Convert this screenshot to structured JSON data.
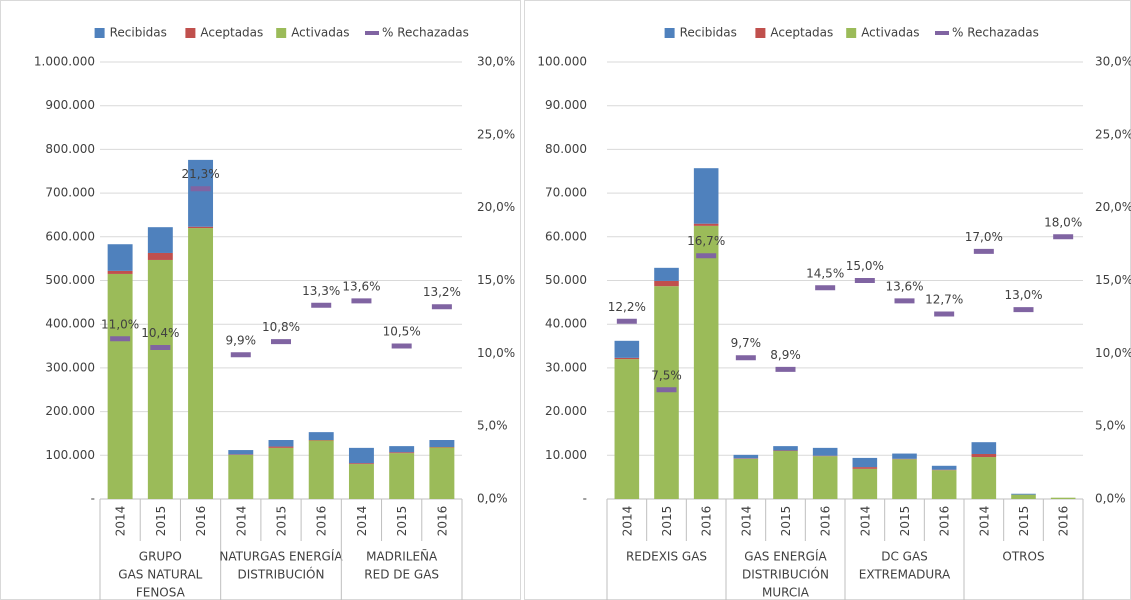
{
  "chart_data": [
    {
      "type": "bar",
      "stacked": true,
      "grid": true,
      "legend": "top",
      "ylim": [
        0,
        1000000
      ],
      "yticks": [
        {
          "value": 0,
          "label": "-"
        },
        {
          "value": 100000,
          "label": "100.000"
        },
        {
          "value": 200000,
          "label": "200.000"
        },
        {
          "value": 300000,
          "label": "300.000"
        },
        {
          "value": 400000,
          "label": "400.000"
        },
        {
          "value": 500000,
          "label": "500.000"
        },
        {
          "value": 600000,
          "label": "600.000"
        },
        {
          "value": 700000,
          "label": "700.000"
        },
        {
          "value": 800000,
          "label": "800.000"
        },
        {
          "value": 900000,
          "label": "900.000"
        },
        {
          "value": 1000000,
          "label": "1.000.000"
        }
      ],
      "y2lim": [
        0,
        30
      ],
      "y2ticks": [
        {
          "value": 0,
          "label": "0,0%"
        },
        {
          "value": 5,
          "label": "5,0%"
        },
        {
          "value": 10,
          "label": "10,0%"
        },
        {
          "value": 15,
          "label": "15,0%"
        },
        {
          "value": 20,
          "label": "20,0%"
        },
        {
          "value": 25,
          "label": "25,0%"
        },
        {
          "value": 30,
          "label": "30,0%"
        }
      ],
      "groups": [
        {
          "label_lines": [
            "GRUPO",
            "GAS NATURAL",
            "FENOSA"
          ],
          "categories": [
            "2014",
            "2015",
            "2016"
          ]
        },
        {
          "label_lines": [
            "NATURGAS ENERGÍA",
            "DISTRIBUCIÓN"
          ],
          "categories": [
            "2014",
            "2015",
            "2016"
          ]
        },
        {
          "label_lines": [
            "MADRILEÑA",
            "RED DE GAS"
          ],
          "categories": [
            "2014",
            "2015",
            "2016"
          ]
        }
      ],
      "series": [
        {
          "name": "Recibidas",
          "color": "#4f81bd",
          "values": [
            61000,
            59000,
            153000,
            10000,
            15000,
            18000,
            35000,
            14000,
            16000
          ]
        },
        {
          "name": "Aceptadas",
          "color": "#c0504d",
          "values": [
            7000,
            16000,
            3000,
            1000,
            3000,
            1000,
            2000,
            2000,
            1000
          ]
        },
        {
          "name": "Activadas",
          "color": "#9bbb59",
          "values": [
            515000,
            547000,
            620000,
            101000,
            117000,
            134000,
            80000,
            105000,
            118000
          ]
        },
        {
          "name": "% Rechazadas",
          "color": "#8064a2",
          "axis": "y2",
          "values": [
            11.0,
            10.4,
            21.3,
            9.9,
            10.8,
            13.3,
            13.6,
            10.5,
            13.2
          ],
          "value_labels": [
            "11,0%",
            "10,4%",
            "21,3%",
            "9,9%",
            "10,8%",
            "13,3%",
            "13,6%",
            "10,5%",
            "13,2%"
          ]
        }
      ]
    },
    {
      "type": "bar",
      "stacked": true,
      "grid": true,
      "legend": "top",
      "ylim": [
        0,
        100000
      ],
      "yticks": [
        {
          "value": 0,
          "label": "-"
        },
        {
          "value": 10000,
          "label": "10.000"
        },
        {
          "value": 20000,
          "label": "20.000"
        },
        {
          "value": 30000,
          "label": "30.000"
        },
        {
          "value": 40000,
          "label": "40.000"
        },
        {
          "value": 50000,
          "label": "50.000"
        },
        {
          "value": 60000,
          "label": "60.000"
        },
        {
          "value": 70000,
          "label": "70.000"
        },
        {
          "value": 80000,
          "label": "80.000"
        },
        {
          "value": 90000,
          "label": "90.000"
        },
        {
          "value": 100000,
          "label": "100.000"
        }
      ],
      "y2lim": [
        0,
        30
      ],
      "y2ticks": [
        {
          "value": 0,
          "label": "0,0%"
        },
        {
          "value": 5,
          "label": "5,0%"
        },
        {
          "value": 10,
          "label": "10,0%"
        },
        {
          "value": 15,
          "label": "15,0%"
        },
        {
          "value": 20,
          "label": "20,0%"
        },
        {
          "value": 25,
          "label": "25,0%"
        },
        {
          "value": 30,
          "label": "30,0%"
        }
      ],
      "groups": [
        {
          "label_lines": [
            "REDEXIS GAS"
          ],
          "categories": [
            "2014",
            "2015",
            "2016"
          ]
        },
        {
          "label_lines": [
            "GAS ENERGÍA",
            "DISTRIBUCIÓN",
            "MURCIA"
          ],
          "categories": [
            "2014",
            "2015",
            "2016"
          ]
        },
        {
          "label_lines": [
            "DC GAS",
            "EXTREMADURA"
          ],
          "categories": [
            "2014",
            "2015",
            "2016"
          ]
        },
        {
          "label_lines": [
            "OTROS"
          ],
          "categories": [
            "2014",
            "2015",
            "2016"
          ]
        }
      ],
      "series": [
        {
          "name": "Recibidas",
          "color": "#4f81bd",
          "values": [
            3900,
            3000,
            12700,
            800,
            1000,
            1800,
            2100,
            1200,
            900,
            2700,
            200,
            0
          ]
        },
        {
          "name": "Aceptadas",
          "color": "#c0504d",
          "values": [
            300,
            1200,
            500,
            100,
            100,
            100,
            400,
            100,
            100,
            700,
            0,
            0
          ]
        },
        {
          "name": "Activadas",
          "color": "#9bbb59",
          "values": [
            32000,
            48700,
            62500,
            9200,
            11000,
            9800,
            6900,
            9100,
            6600,
            9600,
            1000,
            300
          ]
        },
        {
          "name": "% Rechazadas",
          "color": "#8064a2",
          "axis": "y2",
          "values": [
            12.2,
            7.5,
            16.7,
            9.7,
            8.9,
            14.5,
            15.0,
            13.6,
            12.7,
            17.0,
            13.0,
            18.0
          ],
          "value_labels": [
            "12,2%",
            "7,5%",
            "16,7%",
            "9,7%",
            "8,9%",
            "14,5%",
            "15,0%",
            "13,6%",
            "12,7%",
            "17,0%",
            "13,0%",
            "18,0%"
          ]
        }
      ]
    }
  ]
}
